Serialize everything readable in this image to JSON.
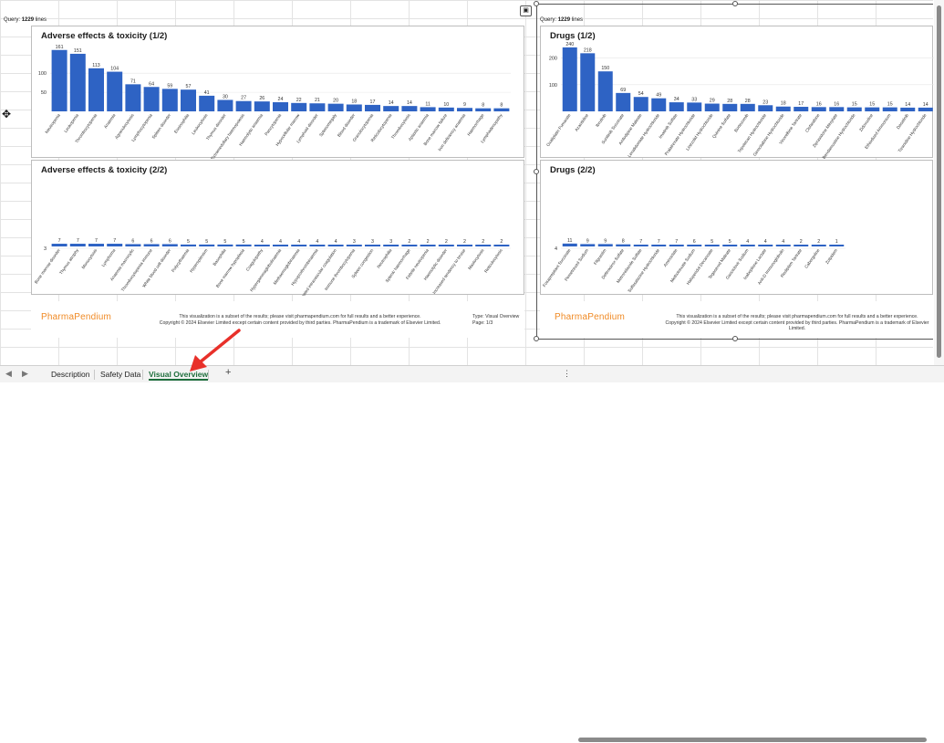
{
  "left_query": {
    "label": "Query:",
    "count": "1229",
    "suffix": "lines"
  },
  "right_query": {
    "label": "Query:",
    "count": "1229",
    "suffix": "lines"
  },
  "colors": {
    "bar": "#2e63c4",
    "tab_active": "#1e6e3c",
    "logo": "#f08a24",
    "arrow": "#e8302a"
  },
  "panels": {
    "ae1": {
      "title": "Adverse effects & toxicity (1/2)"
    },
    "ae2": {
      "title": "Adverse effects & toxicity (2/2)"
    },
    "dr1": {
      "title": "Drugs (1/2)"
    },
    "dr2": {
      "title": "Drugs (2/2)"
    }
  },
  "chart_data": [
    {
      "type": "bar",
      "title": "Adverse effects & toxicity (1/2)",
      "ylim": [
        0,
        170
      ],
      "yticks": [
        50,
        100
      ],
      "categories": [
        "Neutropenia",
        "Leukopenia",
        "Thrombocytopenia",
        "Anaemia",
        "Agranulocytosis",
        "Lymphocytopenia",
        "Spleen disorder",
        "Eosinophilia",
        "Leukocytosis",
        "Thymus disorder",
        "Extramedullary haemopoiesis",
        "Haemolytic anaemia",
        "Pancytopenia",
        "Hypocellular marrow",
        "Lymphoid disorder",
        "Splenomegaly",
        "Blood disorder",
        "Granulocytopenia",
        "Reticulocytopenia",
        "Thrombocytosis",
        "Aplastic anaemia",
        "Bone marrow failure",
        "Iron deficiency anaemia",
        "Haemorrhage",
        "Lymphadenopathy"
      ],
      "values": [
        161,
        151,
        113,
        104,
        71,
        64,
        59,
        57,
        41,
        30,
        27,
        26,
        24,
        22,
        21,
        20,
        18,
        17,
        14,
        14,
        11,
        10,
        9,
        8,
        8
      ]
    },
    {
      "type": "bar",
      "title": "Adverse effects & toxicity (2/2)",
      "ylim": [
        0,
        170
      ],
      "yticks": [
        3
      ],
      "categories": [
        "Bone marrow disorder",
        "Thymus atrophy",
        "Monocytosis",
        "Lymphoma",
        "Anaemia macrocytic",
        "Thrombocytopenia immune",
        "White blood cell disorder",
        "Polycythaemia",
        "Hypersplenism",
        "Basophilia",
        "Bone marrow hypoplasia",
        "Coagulopathy",
        "Hypergammaglobulinaemia",
        "Methaemoglobinaemia",
        "Hypoprothrombinaemia",
        "Disseminated intravascular coagulation",
        "Immune thrombocytopenia",
        "Spleen congestion",
        "Neutrophilia",
        "Splenic haemorrhage",
        "Febrile neutropenia",
        "Haemolytic disorder",
        "Increased tendency to bruise",
        "Mastocytosis",
        "Reticulocytosis"
      ],
      "values": [
        7,
        7,
        7,
        7,
        6,
        6,
        6,
        5,
        5,
        5,
        5,
        4,
        4,
        4,
        4,
        4,
        3,
        3,
        3,
        2,
        2,
        2,
        2,
        2,
        2
      ]
    },
    {
      "type": "bar",
      "title": "Drugs (1/2)",
      "ylim": [
        0,
        250
      ],
      "yticks": [
        100,
        200
      ],
      "categories": [
        "Oxaliplatin Fumarate",
        "Azacitidine",
        "Ibrutinib",
        "Sunitinib Succinate",
        "Amlodipine Maleate",
        "Lenalidomide Hydrochloride",
        "Imatinib Sulfate",
        "Pralatrexate Hydrochloride",
        "Linezolid Hydrochloride",
        "Quinine Sulfate",
        "Bortezomib",
        "Topotecan Hydrochloride",
        "Gemcitabine Hydrochloride",
        "Vinorelbine Tartrate",
        "Clofarabine",
        "Ziprasidone Mesylate",
        "Bendamustine Hydrochloride",
        "Zidovudine",
        "Ethiodized Ammonium",
        "Dasatinib",
        "Tizanidine Hydrochloride"
      ],
      "values": [
        240,
        218,
        150,
        69,
        54,
        49,
        34,
        33,
        29,
        28,
        28,
        23,
        18,
        17,
        16,
        16,
        15,
        15,
        15,
        14,
        14
      ]
    },
    {
      "type": "bar",
      "title": "Drugs (2/2)",
      "ylim": [
        0,
        250
      ],
      "yticks": [
        4
      ],
      "categories": [
        "Fosaprepitant Succinate",
        "Pemetrexed Sodium",
        "Filgrastim",
        "Deferasirox Sulfate",
        "Metronidazole Sulfate",
        "Sulfasalazine Hydrochloride",
        "Aminoclate",
        "Methotrexate Sodium",
        "Haloperidol Decanoate",
        "Tegaserod Maleate",
        "Ganciclovir Sodium",
        "Ixabepilone Lactate",
        "Anti-D Immunoglobulin",
        "Risdiplam Tartrate",
        "Cabergoline",
        "Zolpidem"
      ],
      "values": [
        11,
        9,
        9,
        8,
        7,
        7,
        7,
        6,
        5,
        5,
        4,
        4,
        4,
        2,
        2,
        1
      ]
    }
  ],
  "footers": {
    "left": {
      "logo": "PharmaPendium",
      "line1": "This visualization is a subset of the results; please visit pharmapendium.com for full results and a better experience.",
      "line2": "Copyright © 2024 Elsevier Limited except certain content provided by third parties. PharmaPendium is a trademark of Elsevier Limited.",
      "type": "Type: Visual Overview",
      "page": "Page: 1/3"
    },
    "right": {
      "logo": "PharmaPendium",
      "line1": "This visualization is a subset of the results; please visit pharmapendium.com for full results and a better experience.",
      "line2": "Copyright © 2024 Elsevier Limited except certain content provided by third parties. PharmaPendium is a trademark of Elsevier Limited."
    }
  },
  "tabs": {
    "prev": "◀",
    "next": "▶",
    "items": [
      "Description",
      "Safety Data",
      "Visual Overview"
    ],
    "active": "Visual Overview",
    "add": "+",
    "more": "⋮"
  },
  "icons": {
    "picture": "image-frame-icon",
    "cursor": "move-cursor-icon",
    "arrow": "red-arrow-annotation"
  }
}
